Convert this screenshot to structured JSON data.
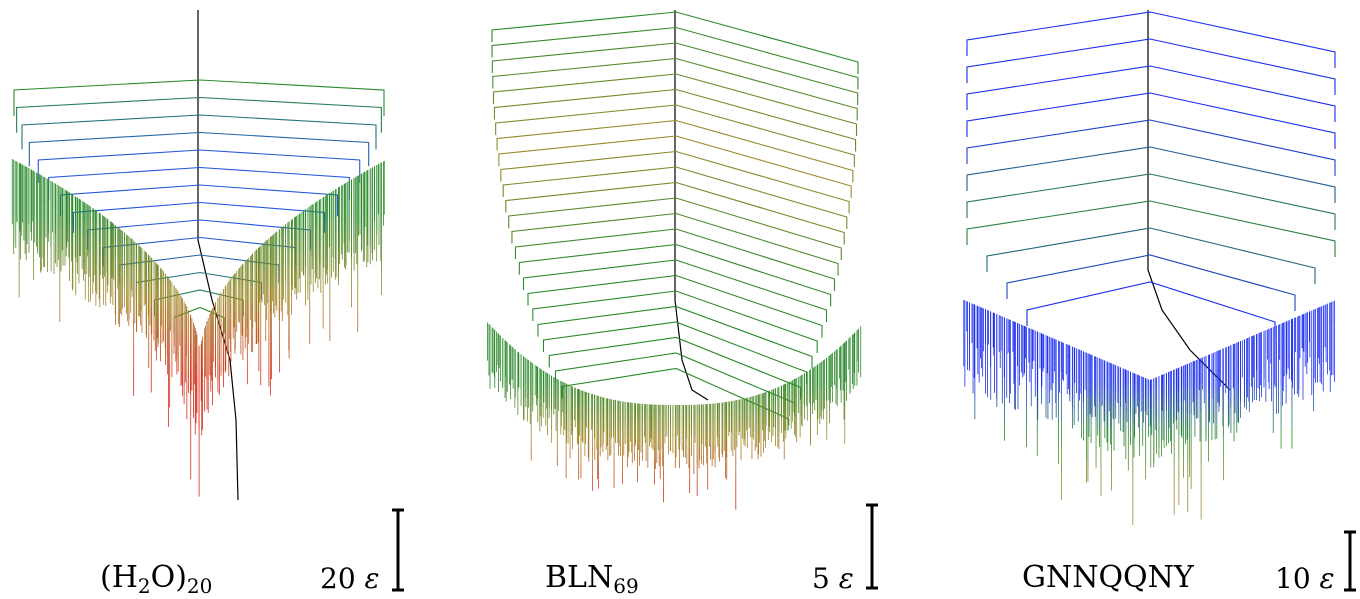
{
  "colors": {
    "trunk": "#000000",
    "high_energy_blue": "#2255dd",
    "mid_green": "#2a8a2a",
    "low_energy_red": "#d4301a",
    "olive": "#a08a2a",
    "pure_blue": "#1a2cf0"
  },
  "panels": [
    {
      "label_main": "(H",
      "label_sub1": "2",
      "label_mid": "O)",
      "label_sub2": "20",
      "scale_value": "20",
      "scale_unit": "ε"
    },
    {
      "label_main": "BLN",
      "label_sub1": "69",
      "label_mid": "",
      "label_sub2": "",
      "scale_value": "5",
      "scale_unit": "ε"
    },
    {
      "label_main": "GNNQQNY",
      "label_sub1": "",
      "label_mid": "",
      "label_sub2": "",
      "scale_value": "10",
      "scale_unit": "ε"
    }
  ]
}
